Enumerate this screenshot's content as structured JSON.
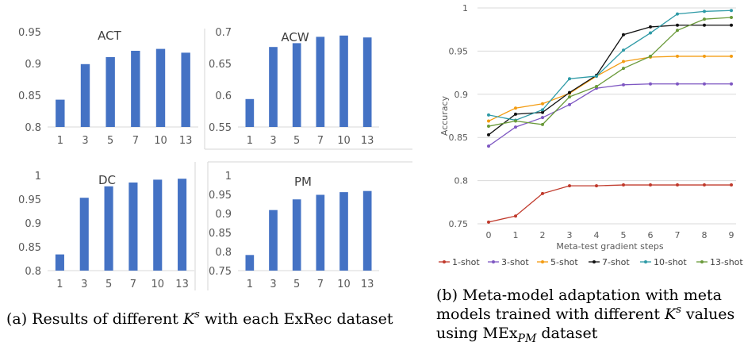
{
  "caption_a": "(a) Results of different K^s with each ExRec dataset",
  "caption_b_line1": "(b) Meta-model adaptation with meta",
  "caption_b_line2": "models trained with different K^s values",
  "caption_b_line3": "using MEx_PM dataset",
  "chart_data": [
    {
      "type": "bar",
      "title": "ACT",
      "categories": [
        "1",
        "3",
        "5",
        "7",
        "10",
        "13"
      ],
      "values": [
        0.843,
        0.899,
        0.91,
        0.92,
        0.923,
        0.917
      ],
      "ylim": [
        0.8,
        0.95
      ],
      "yticks": [
        "0.8",
        "0.85",
        "0.9",
        "0.95"
      ],
      "color": "#4472C4"
    },
    {
      "type": "bar",
      "title": "ACW",
      "categories": [
        "1",
        "3",
        "5",
        "7",
        "10",
        "13"
      ],
      "values": [
        0.594,
        0.676,
        0.682,
        0.692,
        0.694,
        0.691
      ],
      "ylim": [
        0.55,
        0.7
      ],
      "yticks": [
        "0.55",
        "0.6",
        "0.65",
        "0.7"
      ],
      "color": "#4472C4"
    },
    {
      "type": "bar",
      "title": "DC",
      "categories": [
        "1",
        "3",
        "5",
        "7",
        "10",
        "13"
      ],
      "values": [
        0.834,
        0.953,
        0.977,
        0.985,
        0.991,
        0.993
      ],
      "ylim": [
        0.8,
        1.0
      ],
      "yticks": [
        "0.8",
        "0.85",
        "0.9",
        "0.95",
        "1"
      ],
      "color": "#4472C4"
    },
    {
      "type": "bar",
      "title": "PM",
      "categories": [
        "1",
        "3",
        "5",
        "7",
        "10",
        "13"
      ],
      "values": [
        0.791,
        0.909,
        0.937,
        0.949,
        0.956,
        0.959
      ],
      "ylim": [
        0.75,
        1.0
      ],
      "yticks": [
        "0.75",
        "0.8",
        "0.85",
        "0.9",
        "0.95",
        "1"
      ],
      "color": "#4472C4"
    },
    {
      "type": "line",
      "xlabel": "Meta-test gradient steps",
      "ylabel": "Accuracy",
      "x": [
        0,
        1,
        2,
        3,
        4,
        5,
        6,
        7,
        8,
        9
      ],
      "ylim": [
        0.75,
        1.0
      ],
      "yticks": [
        "0.75",
        "0.8",
        "0.85",
        "0.9",
        "0.95",
        "1"
      ],
      "legend_position": "bottom",
      "series": [
        {
          "name": "1-shot",
          "color": "#C0392B",
          "values": [
            0.752,
            0.759,
            0.785,
            0.794,
            0.794,
            0.795,
            0.795,
            0.795,
            0.795,
            0.795
          ]
        },
        {
          "name": "3-shot",
          "color": "#7E57C2",
          "values": [
            0.84,
            0.862,
            0.873,
            0.888,
            0.907,
            0.911,
            0.912,
            0.912,
            0.912,
            0.912
          ]
        },
        {
          "name": "5-shot",
          "color": "#F39C12",
          "values": [
            0.869,
            0.884,
            0.889,
            0.901,
            0.921,
            0.938,
            0.943,
            0.944,
            0.944,
            0.944
          ]
        },
        {
          "name": "7-shot",
          "color": "#111111",
          "values": [
            0.853,
            0.877,
            0.879,
            0.902,
            0.922,
            0.969,
            0.978,
            0.98,
            0.98,
            0.98
          ]
        },
        {
          "name": "10-shot",
          "color": "#2E9AA6",
          "values": [
            0.876,
            0.87,
            0.882,
            0.918,
            0.921,
            0.951,
            0.971,
            0.993,
            0.996,
            0.997
          ]
        },
        {
          "name": "13-shot",
          "color": "#6A9A3A",
          "values": [
            0.863,
            0.869,
            0.865,
            0.897,
            0.909,
            0.93,
            0.944,
            0.974,
            0.987,
            0.989
          ]
        }
      ]
    }
  ]
}
